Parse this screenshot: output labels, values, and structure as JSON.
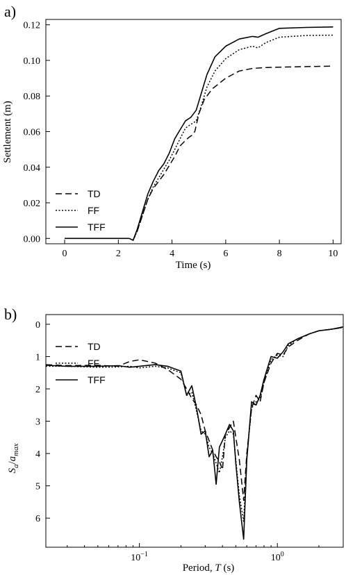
{
  "chart_data": [
    {
      "type": "line",
      "panel_label": "a)",
      "xlabel": "Time (s)",
      "ylabel": "Settlement (m)",
      "xlim": [
        -0.7,
        10.3
      ],
      "ylim": [
        0.123,
        -0.003
      ],
      "y_inverted": true,
      "x_ticks": [
        0,
        2,
        4,
        6,
        8,
        10
      ],
      "x_tick_labels": [
        "0",
        "2",
        "4",
        "6",
        "8",
        "10"
      ],
      "y_ticks": [
        0.0,
        0.02,
        0.04,
        0.06,
        0.08,
        0.1,
        0.12
      ],
      "y_tick_labels": [
        "0.00",
        "0.02",
        "0.04",
        "0.06",
        "0.08",
        "0.10",
        "0.12"
      ],
      "legend_position": "bottom-left",
      "grid": false,
      "series": [
        {
          "name": "TD",
          "style": "dashed",
          "x": [
            0,
            0.5,
            1.0,
            1.5,
            2.0,
            2.4,
            2.55,
            2.7,
            2.9,
            3.1,
            3.3,
            3.5,
            3.7,
            3.9,
            4.1,
            4.3,
            4.5,
            4.65,
            4.75,
            4.85,
            5.0,
            5.2,
            5.5,
            6.0,
            6.5,
            7.0,
            7.5,
            8.0,
            9.0,
            10.0
          ],
          "y": [
            0.0,
            0.0,
            0.0,
            0.0,
            0.0,
            0.0,
            -0.001,
            0.004,
            0.013,
            0.022,
            0.028,
            0.032,
            0.036,
            0.041,
            0.046,
            0.052,
            0.055,
            0.057,
            0.058,
            0.06,
            0.07,
            0.078,
            0.084,
            0.09,
            0.094,
            0.0955,
            0.096,
            0.0962,
            0.0965,
            0.0968
          ]
        },
        {
          "name": "FF",
          "style": "dotted",
          "x": [
            0,
            0.5,
            1.0,
            1.5,
            2.0,
            2.4,
            2.55,
            2.7,
            2.9,
            3.1,
            3.3,
            3.5,
            3.7,
            3.9,
            4.1,
            4.3,
            4.5,
            4.7,
            4.9,
            5.1,
            5.3,
            5.6,
            6.0,
            6.5,
            7.0,
            7.2,
            7.5,
            8.0,
            9.0,
            10.0
          ],
          "y": [
            0.0,
            0.0,
            0.0,
            0.0,
            0.0,
            0.0,
            -0.001,
            0.004,
            0.013,
            0.022,
            0.029,
            0.034,
            0.039,
            0.044,
            0.05,
            0.056,
            0.062,
            0.064,
            0.066,
            0.075,
            0.085,
            0.094,
            0.101,
            0.106,
            0.108,
            0.107,
            0.11,
            0.113,
            0.114,
            0.1142
          ]
        },
        {
          "name": "TFF",
          "style": "solid",
          "x": [
            0,
            0.5,
            1.0,
            1.5,
            2.0,
            2.4,
            2.55,
            2.7,
            2.9,
            3.1,
            3.3,
            3.5,
            3.7,
            3.9,
            4.1,
            4.3,
            4.5,
            4.7,
            4.9,
            5.1,
            5.3,
            5.6,
            6.0,
            6.5,
            7.0,
            7.2,
            7.5,
            8.0,
            9.0,
            10.0
          ],
          "y": [
            0.0,
            0.0,
            0.0,
            0.0,
            0.0,
            0.0,
            -0.001,
            0.005,
            0.015,
            0.025,
            0.032,
            0.038,
            0.042,
            0.048,
            0.056,
            0.061,
            0.066,
            0.068,
            0.072,
            0.082,
            0.092,
            0.102,
            0.108,
            0.112,
            0.1135,
            0.113,
            0.115,
            0.118,
            0.1185,
            0.1188
          ]
        }
      ]
    },
    {
      "type": "line",
      "panel_label": "b)",
      "xlabel": "Period, T (s)",
      "ylabel": "Sa/amax",
      "x_scale": "log",
      "xlim": [
        0.021,
        3.0
      ],
      "ylim": [
        -0.3,
        6.9
      ],
      "x_ticks": [
        0.1,
        1.0
      ],
      "x_tick_labels": [
        "10−1",
        "100"
      ],
      "y_ticks": [
        0,
        1,
        2,
        3,
        4,
        5,
        6
      ],
      "y_tick_labels": [
        "0",
        "1",
        "2",
        "3",
        "4",
        "5",
        "6"
      ],
      "legend_position": "top-left",
      "grid": false,
      "series": [
        {
          "name": "TD",
          "style": "dashed",
          "x": [
            0.021,
            0.03,
            0.05,
            0.07,
            0.085,
            0.1,
            0.13,
            0.16,
            0.2,
            0.22,
            0.24,
            0.26,
            0.28,
            0.3,
            0.32,
            0.34,
            0.36,
            0.38,
            0.4,
            0.42,
            0.45,
            0.48,
            0.5,
            0.53,
            0.57,
            0.6,
            0.65,
            0.7,
            0.75,
            0.8,
            0.9,
            1.0,
            1.1,
            1.2,
            1.4,
            1.7,
            2.0,
            2.5,
            3.0
          ],
          "y": [
            1.25,
            1.28,
            1.27,
            1.3,
            1.15,
            1.1,
            1.2,
            1.4,
            1.7,
            2.0,
            2.3,
            2.5,
            2.8,
            3.3,
            3.6,
            3.9,
            4.1,
            4.25,
            4.5,
            3.4,
            3.2,
            3.0,
            3.5,
            4.2,
            5.45,
            4.0,
            2.6,
            2.2,
            2.4,
            1.8,
            1.2,
            0.9,
            0.95,
            0.7,
            0.5,
            0.3,
            0.2,
            0.15,
            0.1
          ]
        },
        {
          "name": "FF",
          "style": "dotted",
          "x": [
            0.021,
            0.03,
            0.05,
            0.07,
            0.085,
            0.1,
            0.13,
            0.16,
            0.2,
            0.22,
            0.24,
            0.26,
            0.28,
            0.3,
            0.32,
            0.34,
            0.36,
            0.38,
            0.4,
            0.42,
            0.45,
            0.48,
            0.5,
            0.53,
            0.57,
            0.6,
            0.65,
            0.7,
            0.75,
            0.8,
            0.9,
            1.0,
            1.1,
            1.2,
            1.4,
            1.7,
            2.0,
            2.5,
            3.0
          ],
          "y": [
            1.3,
            1.3,
            1.33,
            1.32,
            1.3,
            1.35,
            1.3,
            1.35,
            1.5,
            2.2,
            2.1,
            2.7,
            3.3,
            3.4,
            3.8,
            4.0,
            4.3,
            4.6,
            4.1,
            3.5,
            3.3,
            3.4,
            4.2,
            5.3,
            6.1,
            4.1,
            2.6,
            2.4,
            2.3,
            1.8,
            1.1,
            0.95,
            1.0,
            0.65,
            0.45,
            0.3,
            0.2,
            0.15,
            0.1
          ]
        },
        {
          "name": "TFF",
          "style": "solid",
          "x": [
            0.021,
            0.03,
            0.05,
            0.07,
            0.085,
            0.1,
            0.13,
            0.16,
            0.2,
            0.22,
            0.24,
            0.26,
            0.28,
            0.3,
            0.32,
            0.34,
            0.36,
            0.38,
            0.4,
            0.42,
            0.45,
            0.48,
            0.5,
            0.53,
            0.57,
            0.6,
            0.65,
            0.7,
            0.75,
            0.8,
            0.9,
            1.0,
            1.1,
            1.2,
            1.4,
            1.7,
            2.0,
            2.5,
            3.0
          ],
          "y": [
            1.27,
            1.3,
            1.3,
            1.28,
            1.33,
            1.3,
            1.25,
            1.3,
            1.45,
            2.2,
            1.9,
            2.6,
            3.4,
            3.3,
            4.1,
            3.9,
            4.95,
            3.8,
            3.6,
            3.4,
            3.1,
            3.3,
            4.3,
            5.5,
            6.65,
            4.2,
            2.4,
            2.5,
            2.2,
            1.7,
            1.0,
            1.05,
            0.85,
            0.6,
            0.45,
            0.3,
            0.2,
            0.15,
            0.08
          ]
        }
      ]
    }
  ]
}
